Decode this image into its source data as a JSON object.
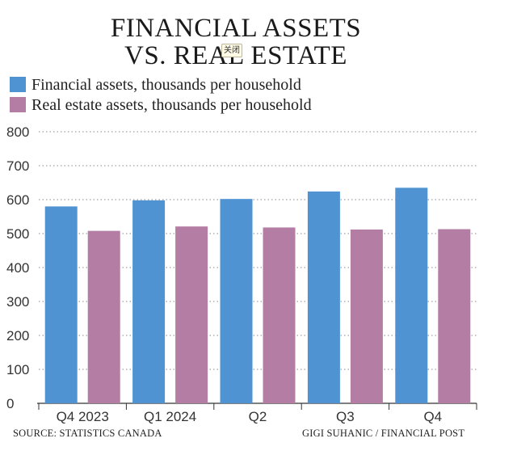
{
  "title_line1": "FINANCIAL ASSETS",
  "title_line2": "VS. REAL ESTATE",
  "overlay_chip": "关闭",
  "source": "SOURCE: STATISTICS CANADA",
  "credit": "GIGI SUHANIC / FINANCIAL POST",
  "colors": {
    "financial": "#4f93d3",
    "real_estate": "#b47ea4",
    "grid": "#888888",
    "axis": "#333333"
  },
  "chart_data": {
    "type": "bar",
    "title": "FINANCIAL ASSETS VS. REAL ESTATE",
    "categories": [
      "Q4 2023",
      "Q1 2024",
      "Q2",
      "Q3",
      "Q4"
    ],
    "series": [
      {
        "name": "Financial assets, thousands per household",
        "values": [
          580,
          598,
          602,
          624,
          635
        ]
      },
      {
        "name": "Real estate assets, thousands per household",
        "values": [
          508,
          521,
          518,
          512,
          513
        ]
      }
    ],
    "xlabel": "",
    "ylabel": "",
    "ylim": [
      0,
      800
    ],
    "yticks": [
      0,
      100,
      200,
      300,
      400,
      500,
      600,
      700,
      800
    ],
    "grid": "dotted horizontal",
    "legend": "top-left"
  }
}
